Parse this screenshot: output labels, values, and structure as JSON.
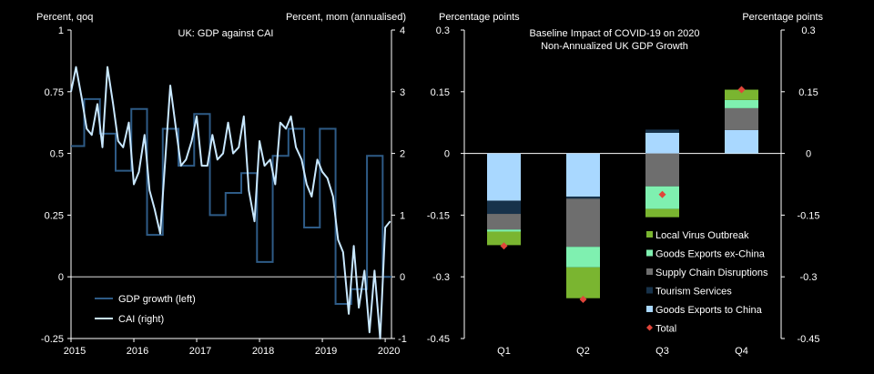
{
  "chart_data": [
    {
      "type": "line",
      "title": "UK: GDP against CAI",
      "ylabel_left": "Percent, qoq",
      "ylabel_right": "Percent, mom (annualised)",
      "left_ylim": [
        -0.25,
        1
      ],
      "left_ticks": [
        "-0.25",
        "0",
        "0.25",
        "0.5",
        "0.75",
        "1"
      ],
      "right_ylim": [
        -1,
        4
      ],
      "right_ticks": [
        "-1",
        "0",
        "1",
        "2",
        "3",
        "4"
      ],
      "x_range": [
        2015,
        2020.1
      ],
      "x_ticks": [
        "2015",
        "2016",
        "2017",
        "2018",
        "2019",
        "2020"
      ],
      "legend": [
        "GDP growth (left)",
        "CAI (right)"
      ],
      "colors": {
        "gdp": "#2e5b86",
        "cai": "#c9e8ff"
      },
      "series": [
        {
          "name": "GDP growth (left)",
          "axis": "left",
          "step": true,
          "x": [
            2015.0,
            2015.21,
            2015.46,
            2015.71,
            2015.96,
            2016.21,
            2016.46,
            2016.71,
            2016.96,
            2017.21,
            2017.46,
            2017.71,
            2017.96,
            2018.21,
            2018.46,
            2018.71,
            2018.96,
            2019.21,
            2019.46,
            2019.71,
            2019.96,
            2020.1
          ],
          "values": [
            0.53,
            0.72,
            0.58,
            0.43,
            0.68,
            0.17,
            0.6,
            0.45,
            0.66,
            0.25,
            0.34,
            0.42,
            0.06,
            0.49,
            0.6,
            0.2,
            0.6,
            -0.11,
            -0.05,
            0.49,
            0.0,
            0.0
          ]
        },
        {
          "name": "CAI (right)",
          "axis": "right",
          "x": [
            2015.0,
            2015.08,
            2015.17,
            2015.25,
            2015.33,
            2015.42,
            2015.5,
            2015.58,
            2015.67,
            2015.75,
            2015.83,
            2015.92,
            2016.0,
            2016.08,
            2016.17,
            2016.25,
            2016.33,
            2016.42,
            2016.5,
            2016.58,
            2016.67,
            2016.75,
            2016.83,
            2016.92,
            2017.0,
            2017.08,
            2017.17,
            2017.25,
            2017.33,
            2017.42,
            2017.5,
            2017.58,
            2017.67,
            2017.75,
            2017.83,
            2017.92,
            2018.0,
            2018.08,
            2018.17,
            2018.25,
            2018.33,
            2018.42,
            2018.5,
            2018.58,
            2018.67,
            2018.75,
            2018.83,
            2018.92,
            2019.0,
            2019.08,
            2019.17,
            2019.25,
            2019.33,
            2019.42,
            2019.5,
            2019.58,
            2019.67,
            2019.75,
            2019.83,
            2019.92,
            2020.0,
            2020.08
          ],
          "values": [
            3.0,
            3.4,
            2.9,
            2.4,
            2.3,
            2.8,
            2.1,
            3.4,
            2.8,
            2.2,
            2.1,
            2.5,
            1.5,
            1.7,
            2.3,
            1.4,
            1.1,
            0.7,
            1.9,
            3.1,
            2.4,
            1.8,
            1.9,
            2.2,
            2.6,
            1.8,
            1.8,
            2.3,
            1.9,
            2.0,
            2.5,
            2.0,
            2.1,
            2.6,
            1.4,
            0.9,
            2.2,
            1.8,
            1.9,
            1.5,
            2.5,
            2.4,
            2.6,
            2.1,
            1.9,
            1.5,
            1.3,
            1.9,
            1.7,
            1.6,
            1.3,
            0.6,
            0.4,
            -0.6,
            0.5,
            -0.5,
            0.1,
            -0.9,
            0.1,
            -1.0,
            0.8,
            0.9
          ]
        }
      ]
    },
    {
      "type": "bar",
      "stacked": true,
      "title": "Baseline Impact of COVID-19 on 2020",
      "subtitle": "Non-Annualized UK GDP Growth",
      "ylabel_left": "Percentage points",
      "ylabel_right": "Percentage points",
      "ylim": [
        -0.45,
        0.3
      ],
      "y_ticks_left": [
        "0.3",
        "0.15",
        "0",
        "-0.15",
        "-0.3",
        "-0.45"
      ],
      "y_ticks_right": [
        "0.3",
        "0.15",
        "0",
        "-0.15",
        "-0.3",
        "-0.45"
      ],
      "categories": [
        "Q1",
        "Q2",
        "Q3",
        "Q4"
      ],
      "series": [
        {
          "name": "Goods Exports to China",
          "color": "#a9d8ff",
          "values": [
            -0.115,
            -0.105,
            0.05,
            0.057
          ]
        },
        {
          "name": "Tourism Services",
          "color": "#17324a",
          "values": [
            -0.032,
            -0.005,
            0.008,
            0.0
          ]
        },
        {
          "name": "Supply Chain Disruptions",
          "color": "#6e6e6e",
          "values": [
            -0.038,
            -0.117,
            -0.08,
            0.053
          ]
        },
        {
          "name": "Goods Exports ex-China",
          "color": "#7ff0b0",
          "values": [
            -0.005,
            -0.05,
            -0.055,
            0.02
          ]
        },
        {
          "name": "Local Virus Outbreak",
          "color": "#7ab530",
          "values": [
            -0.033,
            -0.075,
            -0.02,
            0.025
          ]
        }
      ],
      "total": {
        "name": "Total",
        "color": "#e0453a",
        "values": [
          -0.225,
          -0.355,
          -0.1,
          0.155
        ]
      }
    }
  ]
}
